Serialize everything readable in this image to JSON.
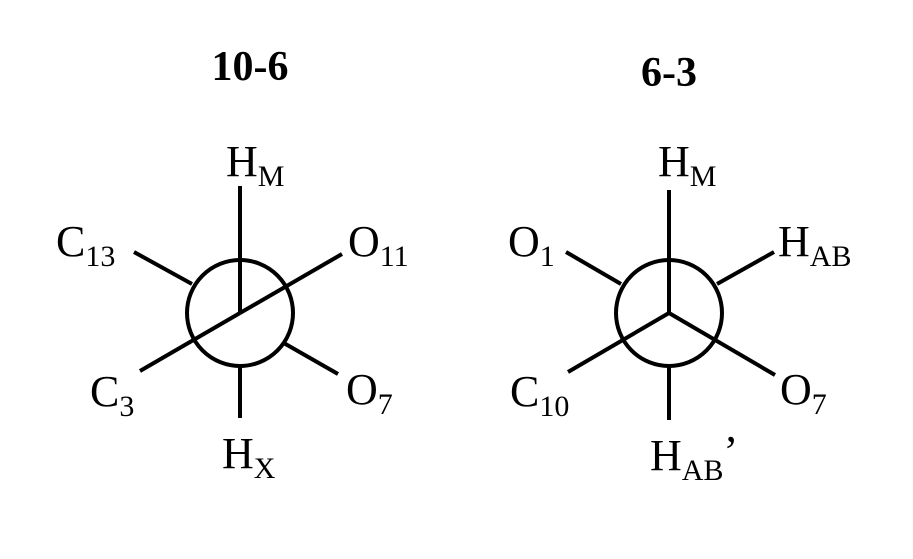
{
  "projections": [
    {
      "title": "10-6",
      "labels": {
        "top": {
          "main": "H",
          "sub": "M",
          "suffix": ""
        },
        "upper_left": {
          "main": "C",
          "sub": "13",
          "suffix": ""
        },
        "upper_right": {
          "main": "O",
          "sub": "11",
          "suffix": ""
        },
        "lower_left": {
          "main": "C",
          "sub": "3",
          "suffix": ""
        },
        "lower_right": {
          "main": "O",
          "sub": "7",
          "suffix": ""
        },
        "bottom": {
          "main": "H",
          "sub": "X",
          "suffix": ""
        }
      }
    },
    {
      "title": "6-3",
      "labels": {
        "top": {
          "main": "H",
          "sub": "M",
          "suffix": ""
        },
        "upper_left": {
          "main": "O",
          "sub": "1",
          "suffix": ""
        },
        "upper_right": {
          "main": "H",
          "sub": "AB",
          "suffix": ""
        },
        "lower_left": {
          "main": "C",
          "sub": "10",
          "suffix": ""
        },
        "lower_right": {
          "main": "O",
          "sub": "7",
          "suffix": ""
        },
        "bottom": {
          "main": "H",
          "sub": "AB",
          "suffix": "’"
        }
      }
    }
  ]
}
